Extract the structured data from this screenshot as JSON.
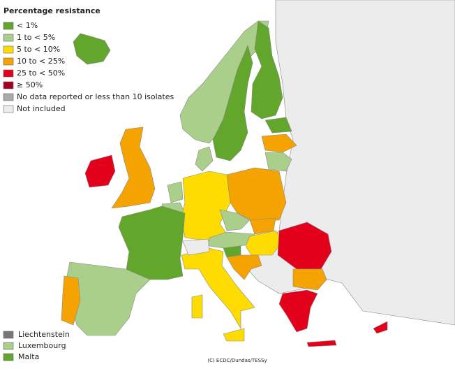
{
  "title": "Percentage resistance",
  "legend": [
    {
      "label": "< 1%",
      "color": "#62a62b"
    },
    {
      "label": "1 to < 5%",
      "color": "#a9cf8a"
    },
    {
      "label": "5 to < 10%",
      "color": "#ffdc00"
    },
    {
      "label": "10 to < 25%",
      "color": "#f5a300"
    },
    {
      "label": "25 to < 50%",
      "color": "#e2001a"
    },
    {
      "label": "≥ 50%",
      "color": "#a50021"
    },
    {
      "label": "No data reported or less than 10 isolates",
      "color": "#aaaaaa"
    },
    {
      "label": "Not included",
      "color": "#ececec"
    }
  ],
  "small_states": [
    {
      "label": "Liechtenstein",
      "color": "#777777"
    },
    {
      "label": "Luxembourg",
      "color": "#a9cf8a"
    },
    {
      "label": "Malta",
      "color": "#62a62b"
    }
  ],
  "credit": "(C) ECDC/Dundas/TESSy"
}
